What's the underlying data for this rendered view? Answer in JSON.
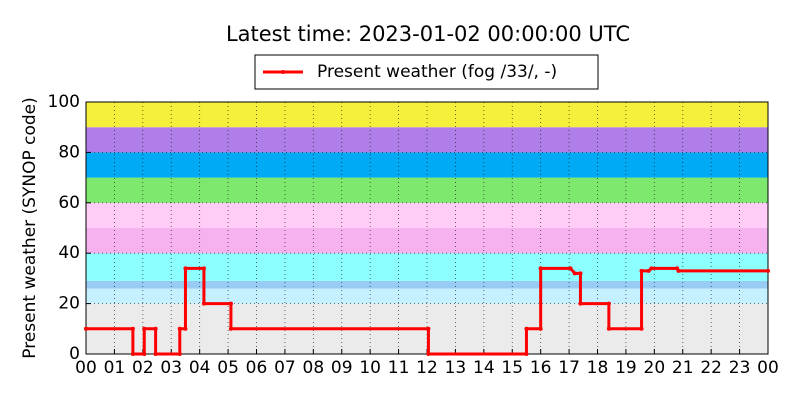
{
  "chart_data": {
    "type": "line",
    "title": "Latest time: 2023-01-02 00:00:00 UTC",
    "y_label": "Present weather (SYNOP code)",
    "series": [
      {
        "name": "Present weather (fog /33/, -)",
        "color": "#ff0000",
        "x": [
          0,
          1.65,
          1.65,
          2.05,
          2.05,
          2.45,
          2.45,
          3.3,
          3.3,
          3.5,
          3.5,
          4.15,
          4.15,
          5.1,
          5.1,
          12.05,
          12.05,
          15.5,
          15.5,
          16.0,
          16.0,
          17.05,
          17.2,
          17.4,
          17.4,
          18.4,
          18.4,
          19.55,
          19.55,
          19.8,
          19.9,
          20.8,
          20.85,
          24
        ],
        "values": [
          10,
          10,
          0,
          0,
          10,
          10,
          0,
          0,
          10,
          10,
          34,
          34,
          20,
          20,
          10,
          10,
          0,
          0,
          10,
          10,
          34,
          34,
          32,
          32,
          20,
          20,
          10,
          10,
          33,
          33,
          34,
          34,
          33,
          33
        ]
      }
    ],
    "bands": [
      {
        "from": 0,
        "to": 20,
        "color": "#ebebeb"
      },
      {
        "from": 20,
        "to": 26,
        "color": "#c4f0ff"
      },
      {
        "from": 26,
        "to": 29,
        "color": "#99ccf5"
      },
      {
        "from": 29,
        "to": 40,
        "color": "#8cffff"
      },
      {
        "from": 40,
        "to": 50,
        "color": "#f5b2ef"
      },
      {
        "from": 50,
        "to": 60,
        "color": "#ffcdf7"
      },
      {
        "from": 60,
        "to": 70,
        "color": "#7ee86e"
      },
      {
        "from": 70,
        "to": 80,
        "color": "#00aaf5"
      },
      {
        "from": 80,
        "to": 90,
        "color": "#b07ee8"
      },
      {
        "from": 90,
        "to": 100,
        "color": "#f5f03c"
      }
    ],
    "xlim": [
      0,
      24
    ],
    "xticks": [
      {
        "value": 0,
        "label": "00"
      },
      {
        "value": 1,
        "label": "01"
      },
      {
        "value": 2,
        "label": "02"
      },
      {
        "value": 3,
        "label": "03"
      },
      {
        "value": 4,
        "label": "04"
      },
      {
        "value": 5,
        "label": "05"
      },
      {
        "value": 6,
        "label": "06"
      },
      {
        "value": 7,
        "label": "07"
      },
      {
        "value": 8,
        "label": "08"
      },
      {
        "value": 9,
        "label": "09"
      },
      10,
      11,
      12,
      13,
      14,
      15,
      16,
      17,
      18,
      19,
      20,
      21,
      22,
      23,
      {
        "value": 24,
        "label": "00"
      }
    ],
    "ylim": [
      0,
      100
    ],
    "yticks": [
      0,
      20,
      40,
      60,
      80,
      100
    ],
    "grid": true
  }
}
